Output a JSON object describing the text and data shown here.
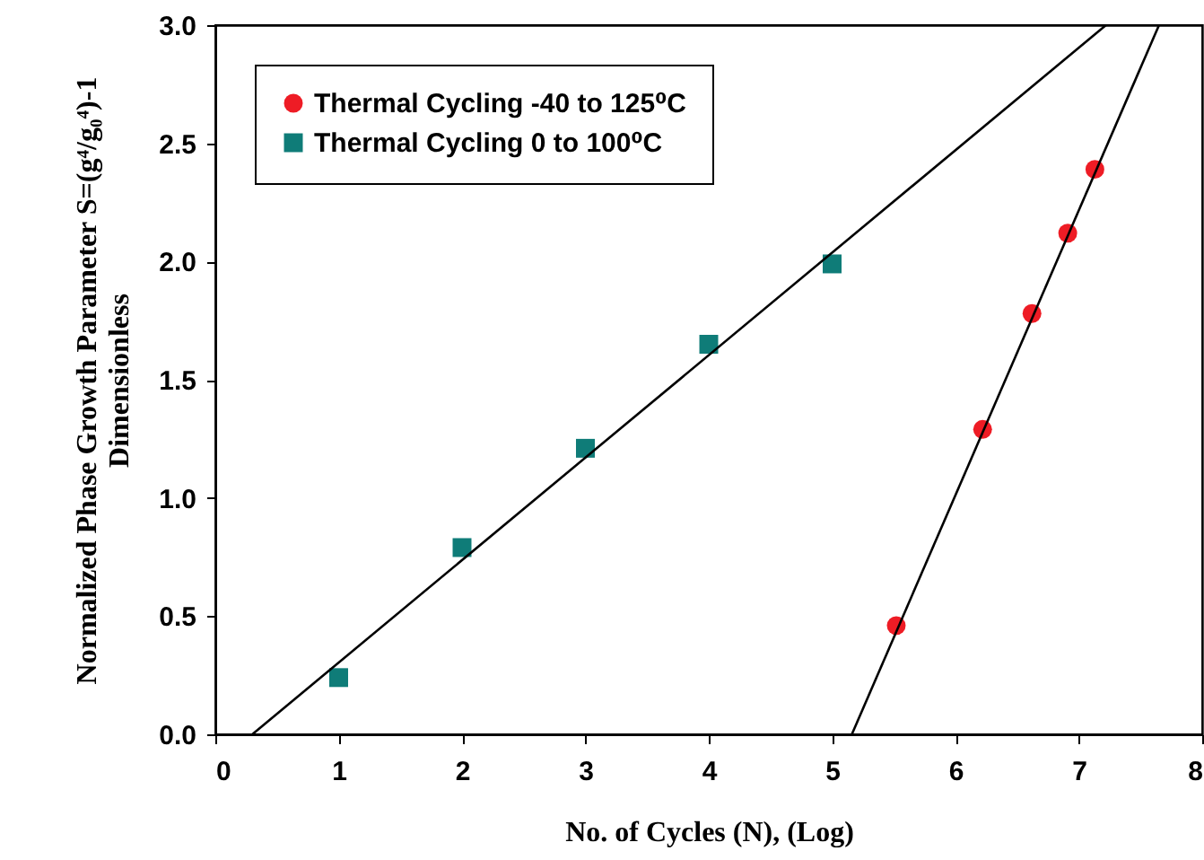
{
  "chart_data": {
    "type": "scatter",
    "xlabel": "No. of Cycles (N), (Log)",
    "ylabel": "Normalized Phase Growth Parameter S=(g⁴/g₀⁴)-1\nDimensionless",
    "xlim": [
      0,
      8
    ],
    "ylim": [
      0,
      3
    ],
    "xticks": [
      0,
      1,
      2,
      3,
      4,
      5,
      6,
      7,
      8
    ],
    "yticks": [
      {
        "value": 0,
        "label": "0.0"
      },
      0.5,
      {
        "value": 1,
        "label": "1.0"
      },
      1.5,
      {
        "value": 2,
        "label": "2.0"
      },
      2.5,
      {
        "value": 3,
        "label": "3.0"
      }
    ],
    "grid": false,
    "legend": "top left",
    "series": [
      {
        "name": "Thermal Cycling -40 to 125⁰C",
        "marker": "circle",
        "color": "#ee1c25",
        "x": [
          5.52,
          6.22,
          6.62,
          6.91,
          7.13
        ],
        "values": [
          0.46,
          1.29,
          1.78,
          2.12,
          2.39
        ]
      },
      {
        "name": "Thermal Cycling 0 to 100⁰C",
        "marker": "square",
        "color": "#0f7c78",
        "x": [
          1,
          2,
          3,
          4,
          5
        ],
        "values": [
          0.24,
          0.79,
          1.21,
          1.65,
          1.99
        ]
      },
      {
        "type": "line",
        "color": "#000000",
        "x": [
          0.3,
          7.22
        ],
        "values": [
          0,
          3.0
        ]
      },
      {
        "type": "line",
        "color": "#000000",
        "x": [
          5.16,
          7.65
        ],
        "values": [
          0,
          3.0
        ]
      }
    ]
  }
}
